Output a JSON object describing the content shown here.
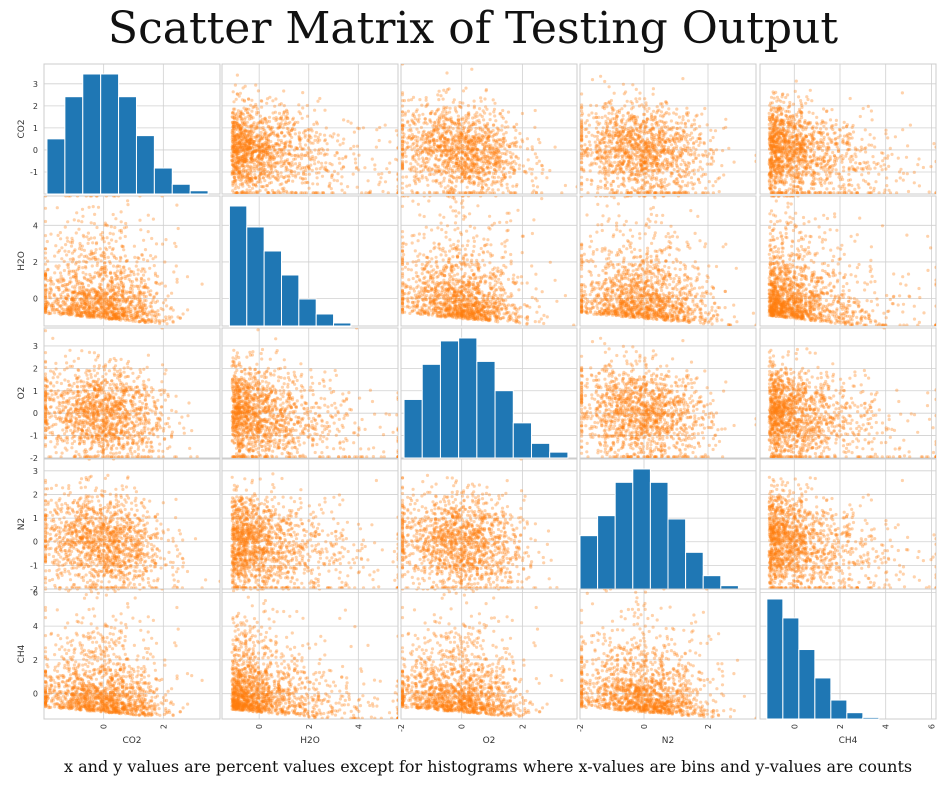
{
  "title": "Scatter Matrix of Testing Output",
  "caption": "x and y values are percent values except for histograms where x-values are bins and y-values are counts",
  "colors": {
    "scatter": "#ff7f0e",
    "histogram": "#1f77b4",
    "grid": "#d0d0d0",
    "frame": "#cccccc"
  },
  "chart_data": {
    "type": "scatter",
    "variables": [
      "CO2",
      "H2O",
      "O2",
      "N2",
      "CH4"
    ],
    "ranges": {
      "CO2": [
        -2.0,
        3.9
      ],
      "H2O": [
        -1.5,
        5.6
      ],
      "O2": [
        -2.0,
        3.8
      ],
      "N2": [
        -2.0,
        3.5
      ],
      "CH4": [
        -1.5,
        6.2
      ]
    },
    "row_ticks": {
      "CO2": [
        -1,
        0,
        1,
        2,
        3
      ],
      "H2O": [
        0,
        2,
        4
      ],
      "O2": [
        -2,
        -1,
        0,
        1,
        2,
        3
      ],
      "N2": [
        -2,
        -1,
        0,
        1,
        2,
        3
      ],
      "CH4": [
        0,
        2,
        4,
        6
      ]
    },
    "col_ticks": {
      "CO2": [
        0,
        2
      ],
      "H2O": [
        0,
        2,
        4
      ],
      "O2": [
        -2,
        0,
        2
      ],
      "N2": [
        -2,
        0,
        2
      ],
      "CH4": [
        0,
        2,
        4,
        6
      ]
    },
    "histograms": {
      "CO2": {
        "bin_edges": [
          -1.9,
          -1.3,
          -0.7,
          -0.1,
          0.5,
          1.1,
          1.7,
          2.3,
          2.9,
          3.5
        ],
        "counts": [
          17,
          30,
          37,
          37,
          30,
          18,
          8,
          3,
          1
        ]
      },
      "H2O": {
        "bin_edges": [
          -1.2,
          -0.5,
          0.2,
          0.9,
          1.6,
          2.3,
          3.0,
          3.7
        ],
        "counts": [
          40,
          33,
          25,
          17,
          9,
          4,
          1
        ]
      },
      "O2": {
        "bin_edges": [
          -1.9,
          -1.3,
          -0.7,
          -0.1,
          0.5,
          1.1,
          1.7,
          2.3,
          2.9,
          3.5
        ],
        "counts": [
          20,
          32,
          40,
          41,
          33,
          23,
          12,
          5,
          2
        ]
      },
      "N2": {
        "bin_edges": [
          -2.0,
          -1.45,
          -0.9,
          -0.35,
          0.2,
          0.75,
          1.3,
          1.85,
          2.4,
          2.95
        ],
        "counts": [
          16,
          22,
          32,
          36,
          32,
          21,
          11,
          4,
          1
        ]
      },
      "CH4": {
        "bin_edges": [
          -1.2,
          -0.5,
          0.2,
          0.9,
          1.6,
          2.3,
          3.0,
          3.7
        ],
        "counts": [
          38,
          32,
          22,
          13,
          6,
          2,
          0.5
        ]
      }
    }
  }
}
